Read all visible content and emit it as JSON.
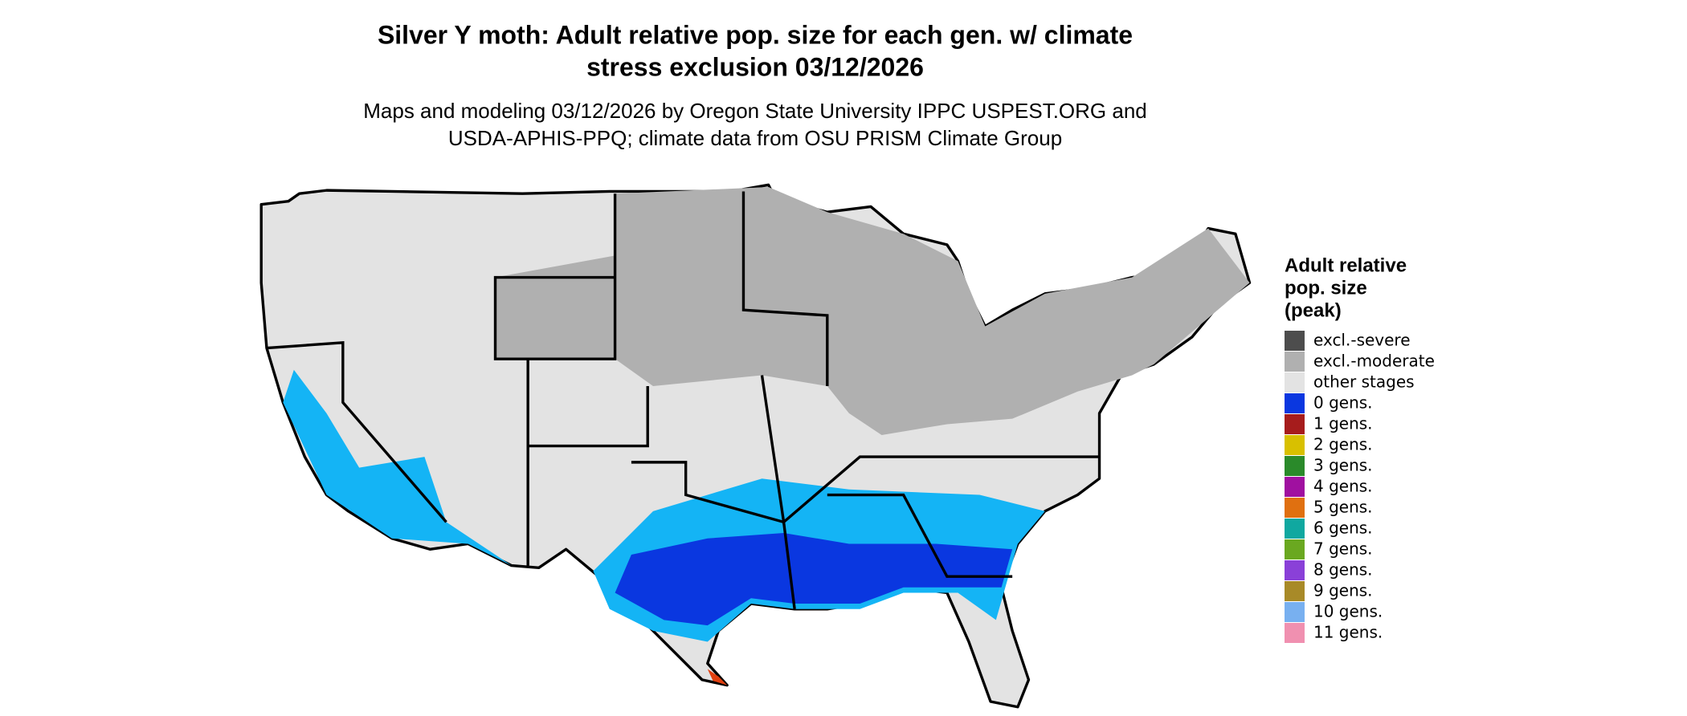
{
  "header": {
    "title": [
      "Silver Y moth: Adult relative pop. size for each gen. w/ climate",
      "stress exclusion 03/12/2026"
    ],
    "subtitle": [
      "Maps and modeling 03/12/2026 by Oregon State University IPPC USPEST.ORG and",
      "USDA-APHIS-PPQ; climate data from OSU PRISM Climate Group"
    ]
  },
  "legend": {
    "title": [
      "Adult relative",
      "pop. size",
      "(peak)"
    ],
    "items": [
      {
        "label": "excl.-severe",
        "color": "#4d4d4d"
      },
      {
        "label": "excl.-moderate",
        "color": "#b0b0b0"
      },
      {
        "label": "other stages",
        "color": "#e3e3e3"
      },
      {
        "label": "0 gens.",
        "color": "#0a37e0"
      },
      {
        "label": "1 gens.",
        "color": "#a61c1c"
      },
      {
        "label": "2 gens.",
        "color": "#d8c000"
      },
      {
        "label": "3 gens.",
        "color": "#2a8a2a"
      },
      {
        "label": "4 gens.",
        "color": "#a010a0"
      },
      {
        "label": "5 gens.",
        "color": "#e07010"
      },
      {
        "label": "6 gens.",
        "color": "#10a8a0"
      },
      {
        "label": "7 gens.",
        "color": "#6aa820"
      },
      {
        "label": "8 gens.",
        "color": "#8a40d8"
      },
      {
        "label": "9 gens.",
        "color": "#a88a28"
      },
      {
        "label": "10 gens.",
        "color": "#78b0f0"
      },
      {
        "label": "11 gens.",
        "color": "#f090b0"
      }
    ]
  }
}
